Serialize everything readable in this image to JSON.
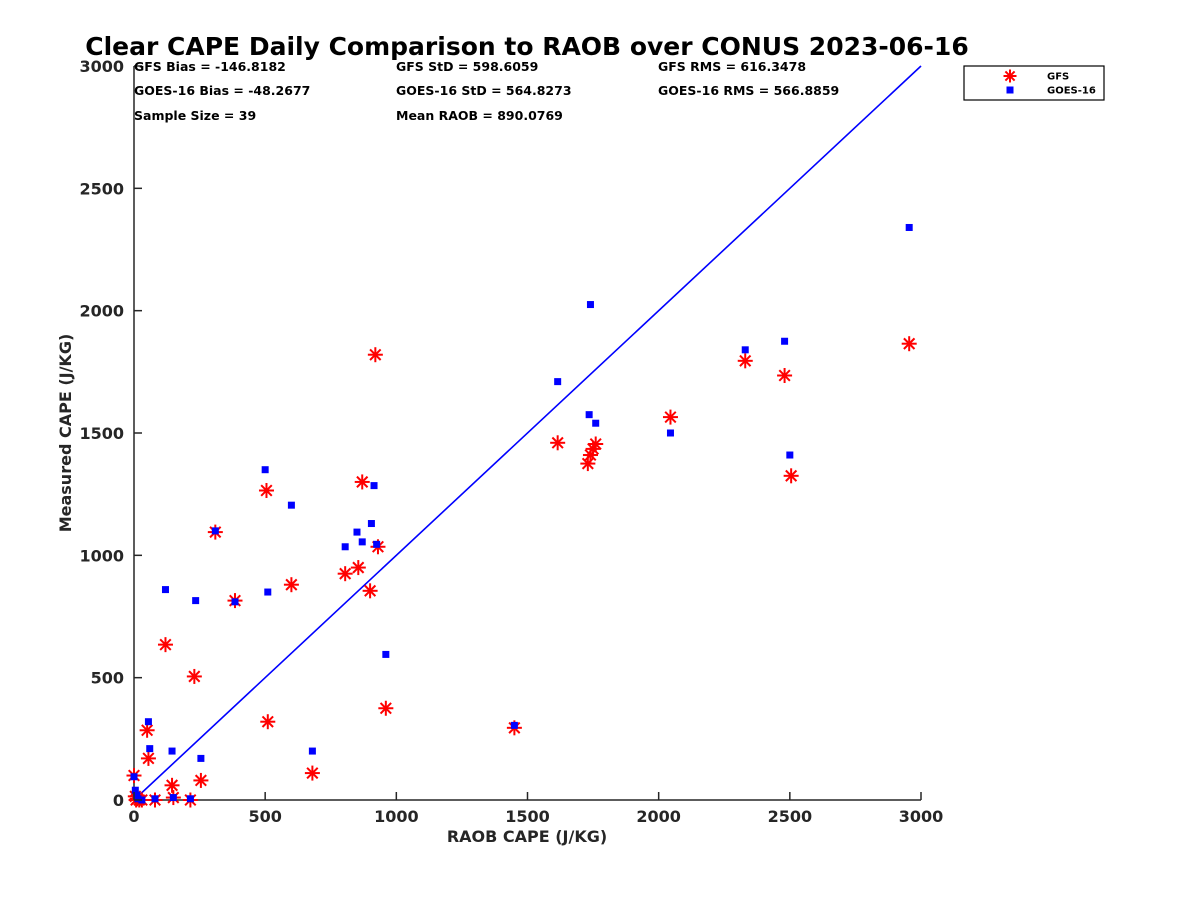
{
  "chart_data": {
    "type": "scatter",
    "title": "Clear CAPE Daily Comparison to RAOB over CONUS 2023-06-16",
    "xlabel": "RAOB CAPE (J/KG)",
    "ylabel": "Measured CAPE (J/KG)",
    "xlim": [
      0,
      3000
    ],
    "ylim": [
      0,
      3000
    ],
    "xticks": [
      "0",
      "500",
      "1000",
      "1500",
      "2000",
      "2500",
      "3000"
    ],
    "yticks": [
      "0",
      "500",
      "1000",
      "1500",
      "2000",
      "2500",
      "3000"
    ],
    "grid": false,
    "legend_position": "top-right (outside plot)",
    "reference_line": {
      "x": [
        0,
        3000
      ],
      "y": [
        0,
        3000
      ],
      "color": "#0000ff"
    },
    "stats": [
      [
        "GFS Bias = -146.8182",
        "GFS StD = 598.6059",
        "GFS RMS = 616.3478"
      ],
      [
        "GOES-16 Bias = -48.2677",
        "GOES-16 StD = 564.8273",
        "GOES-16 RMS = 566.8859"
      ],
      [
        "Sample Size = 39",
        "Mean RAOB = 890.0769",
        ""
      ]
    ],
    "series": [
      {
        "name": "GFS",
        "marker": "asterisk",
        "color": "#ff0000",
        "points": [
          [
            0,
            100
          ],
          [
            5,
            15
          ],
          [
            8,
            0
          ],
          [
            12,
            5
          ],
          [
            20,
            0
          ],
          [
            30,
            0
          ],
          [
            50,
            285
          ],
          [
            55,
            170
          ],
          [
            80,
            0
          ],
          [
            120,
            635
          ],
          [
            145,
            60
          ],
          [
            150,
            10
          ],
          [
            215,
            0
          ],
          [
            230,
            505
          ],
          [
            255,
            80
          ],
          [
            310,
            1095
          ],
          [
            385,
            815
          ],
          [
            505,
            1265
          ],
          [
            510,
            320
          ],
          [
            600,
            880
          ],
          [
            680,
            110
          ],
          [
            805,
            925
          ],
          [
            855,
            950
          ],
          [
            870,
            1300
          ],
          [
            900,
            855
          ],
          [
            920,
            1820
          ],
          [
            930,
            1035
          ],
          [
            960,
            375
          ],
          [
            1450,
            295
          ],
          [
            1615,
            1460
          ],
          [
            1730,
            1375
          ],
          [
            1740,
            1410
          ],
          [
            1750,
            1435
          ],
          [
            1760,
            1455
          ],
          [
            2045,
            1565
          ],
          [
            2330,
            1795
          ],
          [
            2480,
            1735
          ],
          [
            2505,
            1325
          ],
          [
            2955,
            1865
          ]
        ]
      },
      {
        "name": "GOES-16",
        "marker": "square",
        "color": "#0000ff",
        "points": [
          [
            0,
            95
          ],
          [
            5,
            40
          ],
          [
            10,
            20
          ],
          [
            15,
            5
          ],
          [
            30,
            0
          ],
          [
            55,
            320
          ],
          [
            60,
            210
          ],
          [
            80,
            5
          ],
          [
            120,
            860
          ],
          [
            145,
            200
          ],
          [
            150,
            10
          ],
          [
            215,
            5
          ],
          [
            235,
            815
          ],
          [
            255,
            170
          ],
          [
            310,
            1100
          ],
          [
            385,
            810
          ],
          [
            500,
            1350
          ],
          [
            510,
            850
          ],
          [
            600,
            1205
          ],
          [
            680,
            200
          ],
          [
            805,
            1035
          ],
          [
            850,
            1095
          ],
          [
            870,
            1055
          ],
          [
            905,
            1130
          ],
          [
            915,
            1285
          ],
          [
            925,
            1045
          ],
          [
            960,
            595
          ],
          [
            1450,
            305
          ],
          [
            1615,
            1710
          ],
          [
            1735,
            1575
          ],
          [
            1740,
            2025
          ],
          [
            1760,
            1540
          ],
          [
            2045,
            1500
          ],
          [
            2330,
            1840
          ],
          [
            2480,
            1875
          ],
          [
            2500,
            1410
          ],
          [
            2955,
            2340
          ]
        ]
      }
    ]
  }
}
